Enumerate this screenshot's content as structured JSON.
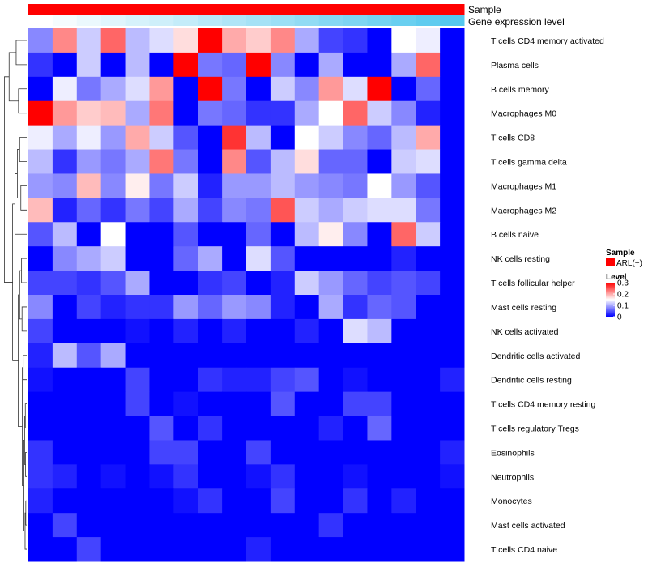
{
  "chart_data": {
    "type": "heatmap",
    "title": "",
    "annotations": [
      {
        "name": "Sample",
        "values": [
          "ARL(+)",
          "ARL(+)",
          "ARL(+)",
          "ARL(+)",
          "ARL(+)",
          "ARL(+)",
          "ARL(+)",
          "ARL(+)",
          "ARL(+)",
          "ARL(+)",
          "ARL(+)",
          "ARL(+)",
          "ARL(+)",
          "ARL(+)",
          "ARL(+)",
          "ARL(+)",
          "ARL(+)",
          "ARL(+)"
        ],
        "color": "#ff0000"
      },
      {
        "name": "Gene expression level",
        "values": [
          0.0,
          0.06,
          0.12,
          0.18,
          0.24,
          0.29,
          0.35,
          0.41,
          0.47,
          0.53,
          0.59,
          0.65,
          0.71,
          0.76,
          0.82,
          0.88,
          0.94,
          1.0
        ],
        "color_low": "#ffffff",
        "color_high": "#55c8ee"
      }
    ],
    "rows": [
      "T cells CD4 memory activated",
      "Plasma cells",
      "B cells memory",
      "Macrophages M0",
      "T cells CD8",
      "T cells gamma delta",
      "Macrophages M1",
      "Macrophages M2",
      "B cells naive",
      "NK cells resting",
      "T cells follicular helper",
      "Mast cells resting",
      "NK cells activated",
      "Dendritic cells activated",
      "Dendritic cells resting",
      "T cells CD4 memory resting",
      "T cells regulatory  Tregs",
      "Eosinophils",
      "Neutrophils",
      "Monocytes",
      "Mast cells activated",
      "T cells CD4 naive"
    ],
    "values": [
      [
        0.08,
        0.22,
        0.12,
        0.24,
        0.11,
        0.13,
        0.17,
        0.3,
        0.2,
        0.18,
        0.22,
        0.1,
        0.04,
        0.03,
        0.0,
        0.15,
        0.14,
        0.0
      ],
      [
        0.03,
        0.0,
        0.12,
        0.0,
        0.11,
        0.0,
        0.3,
        0.07,
        0.06,
        0.3,
        0.08,
        0.0,
        0.1,
        0.0,
        0.0,
        0.1,
        0.24,
        0.0
      ],
      [
        0.0,
        0.14,
        0.07,
        0.1,
        0.13,
        0.21,
        0.0,
        0.3,
        0.07,
        0.0,
        0.12,
        0.08,
        0.21,
        0.13,
        0.3,
        0.0,
        0.06,
        0.0
      ],
      [
        0.3,
        0.21,
        0.18,
        0.19,
        0.1,
        0.23,
        0.0,
        0.07,
        0.06,
        0.03,
        0.03,
        0.1,
        0.15,
        0.24,
        0.12,
        0.08,
        0.02,
        0.0
      ],
      [
        0.14,
        0.1,
        0.14,
        0.09,
        0.2,
        0.12,
        0.05,
        0.0,
        0.27,
        0.11,
        0.0,
        0.15,
        0.12,
        0.08,
        0.06,
        0.11,
        0.2,
        0.0
      ],
      [
        0.11,
        0.03,
        0.09,
        0.07,
        0.1,
        0.23,
        0.07,
        0.0,
        0.22,
        0.05,
        0.11,
        0.17,
        0.06,
        0.06,
        0.0,
        0.12,
        0.13,
        0.0
      ],
      [
        0.09,
        0.08,
        0.19,
        0.08,
        0.16,
        0.07,
        0.12,
        0.02,
        0.09,
        0.09,
        0.11,
        0.09,
        0.08,
        0.07,
        0.15,
        0.09,
        0.05,
        0.0
      ],
      [
        0.19,
        0.02,
        0.06,
        0.03,
        0.07,
        0.04,
        0.1,
        0.04,
        0.08,
        0.07,
        0.25,
        0.12,
        0.1,
        0.12,
        0.13,
        0.13,
        0.07,
        0.0
      ],
      [
        0.05,
        0.11,
        0.0,
        0.15,
        0.0,
        0.0,
        0.05,
        0.0,
        0.0,
        0.06,
        0.0,
        0.11,
        0.16,
        0.08,
        0.0,
        0.24,
        0.12,
        0.0
      ],
      [
        0.0,
        0.08,
        0.1,
        0.12,
        0.0,
        0.0,
        0.06,
        0.1,
        0.0,
        0.13,
        0.05,
        0.0,
        0.0,
        0.0,
        0.0,
        0.02,
        0.0,
        0.0
      ],
      [
        0.04,
        0.04,
        0.03,
        0.05,
        0.1,
        0.0,
        0.0,
        0.03,
        0.04,
        0.0,
        0.02,
        0.12,
        0.09,
        0.06,
        0.04,
        0.05,
        0.04,
        0.0
      ],
      [
        0.08,
        0.0,
        0.04,
        0.02,
        0.03,
        0.03,
        0.09,
        0.06,
        0.09,
        0.08,
        0.02,
        0.0,
        0.1,
        0.03,
        0.06,
        0.05,
        0.0,
        0.0
      ],
      [
        0.04,
        0.0,
        0.0,
        0.0,
        0.01,
        0.0,
        0.02,
        0.0,
        0.02,
        0.0,
        0.0,
        0.02,
        0.0,
        0.13,
        0.11,
        0.0,
        0.0,
        0.0
      ],
      [
        0.02,
        0.11,
        0.05,
        0.1,
        0.0,
        0.0,
        0.0,
        0.0,
        0.0,
        0.0,
        0.0,
        0.0,
        0.0,
        0.0,
        0.0,
        0.0,
        0.0,
        0.0
      ],
      [
        0.01,
        0.0,
        0.0,
        0.0,
        0.04,
        0.0,
        0.0,
        0.03,
        0.02,
        0.02,
        0.04,
        0.05,
        0.0,
        0.01,
        0.0,
        0.0,
        0.0,
        0.02
      ],
      [
        0.0,
        0.0,
        0.0,
        0.0,
        0.04,
        0.0,
        0.01,
        0.0,
        0.0,
        0.0,
        0.05,
        0.0,
        0.0,
        0.04,
        0.04,
        0.0,
        0.0,
        0.0
      ],
      [
        0.0,
        0.0,
        0.0,
        0.0,
        0.0,
        0.05,
        0.0,
        0.03,
        0.0,
        0.0,
        0.0,
        0.0,
        0.02,
        0.0,
        0.06,
        0.0,
        0.0,
        0.0
      ],
      [
        0.03,
        0.0,
        0.0,
        0.0,
        0.0,
        0.04,
        0.04,
        0.0,
        0.0,
        0.04,
        0.0,
        0.0,
        0.0,
        0.0,
        0.0,
        0.0,
        0.0,
        0.02
      ],
      [
        0.03,
        0.02,
        0.0,
        0.01,
        0.0,
        0.01,
        0.03,
        0.0,
        0.0,
        0.01,
        0.03,
        0.0,
        0.0,
        0.01,
        0.0,
        0.0,
        0.0,
        0.01
      ],
      [
        0.02,
        0.0,
        0.0,
        0.0,
        0.0,
        0.0,
        0.01,
        0.03,
        0.0,
        0.0,
        0.04,
        0.0,
        0.0,
        0.03,
        0.0,
        0.02,
        0.0,
        0.0
      ],
      [
        0.0,
        0.04,
        0.0,
        0.0,
        0.0,
        0.0,
        0.0,
        0.0,
        0.0,
        0.0,
        0.0,
        0.0,
        0.03,
        0.0,
        0.0,
        0.0,
        0.0,
        0.0
      ],
      [
        0.0,
        0.0,
        0.04,
        0.0,
        0.0,
        0.0,
        0.0,
        0.0,
        0.0,
        0.02,
        0.0,
        0.0,
        0.0,
        0.0,
        0.0,
        0.0,
        0.0,
        0.0
      ]
    ],
    "color_scale": {
      "low": "#0000ff",
      "mid": "#ffffff",
      "high": "#ff0000",
      "min": 0,
      "max": 0.3
    },
    "dendrogram": "rows",
    "legend": {
      "position": "right",
      "sample_title": "Sample",
      "sample_entries": [
        {
          "label": "ARL(+)",
          "color": "#ff0000"
        }
      ],
      "level_title": "Level",
      "level_ticks": [
        "0.3",
        "0.2",
        "0.1",
        "0"
      ],
      "level_tick_values": [
        0.3,
        0.2,
        0.1,
        0
      ]
    }
  }
}
